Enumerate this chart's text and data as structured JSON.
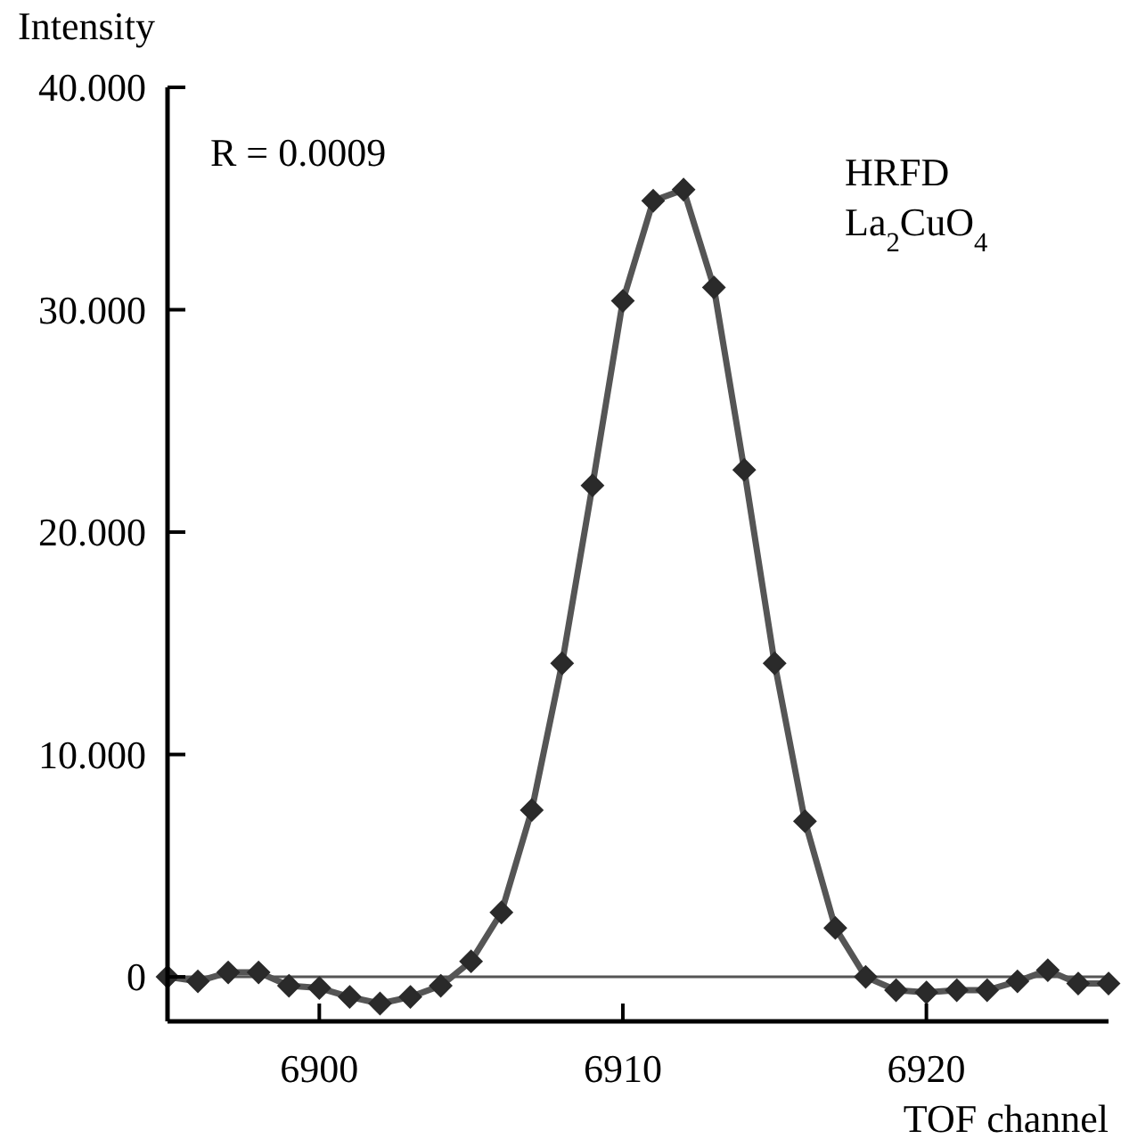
{
  "chart_data": {
    "type": "line",
    "xlabel": "TOF channel",
    "ylabel": "Intensity",
    "x": [
      6895,
      6896,
      6897,
      6898,
      6899,
      6900,
      6901,
      6902,
      6903,
      6904,
      6905,
      6906,
      6907,
      6908,
      6909,
      6910,
      6911,
      6912,
      6913,
      6914,
      6915,
      6916,
      6917,
      6918,
      6919,
      6920,
      6921,
      6922,
      6923,
      6924,
      6925,
      6926
    ],
    "series": [
      {
        "color": "#555555",
        "values": [
          0,
          -0.2,
          0.2,
          0.2,
          -0.4,
          -0.5,
          -0.9,
          -1.2,
          -0.9,
          -0.4,
          0.7,
          2.9,
          7.5,
          14.1,
          22.1,
          30.4,
          34.9,
          35.4,
          31.0,
          22.8,
          14.1,
          7.0,
          2.2,
          0,
          -0.6,
          -0.7,
          -0.6,
          -0.6,
          -0.2,
          0.3,
          -0.3,
          -0.3
        ]
      }
    ],
    "xlim": [
      6895,
      6926
    ],
    "xticks": [
      6900,
      6910,
      6920
    ],
    "ylim": [
      -2,
      40
    ],
    "yticks": [
      {
        "value": 0,
        "label": "0"
      },
      {
        "value": 10,
        "label": "10.000"
      },
      {
        "value": 20,
        "label": "20.000"
      },
      {
        "value": 30,
        "label": "30.000"
      },
      {
        "value": 40,
        "label": "40.000"
      }
    ],
    "ref_lines": [
      {
        "axis": "y",
        "value": 0,
        "color": "#555555"
      }
    ],
    "annotations": [
      "R = 0.0009",
      "HRFD",
      "La$_{2}$CuO$_{4}$"
    ],
    "marker": "diamond",
    "line_style": "solid",
    "grid": false
  }
}
